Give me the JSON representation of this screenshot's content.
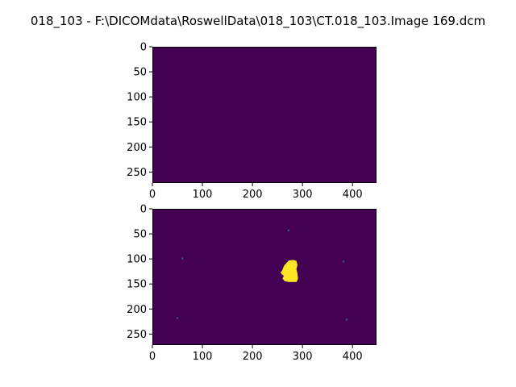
{
  "figure": {
    "title": "018_103 - F:\\DICOMdata\\RoswellData\\018_103\\CT.018_103.Image 169.dcm"
  },
  "colors": {
    "background": "#440154",
    "mask": "#fde725",
    "speck": "#21918c",
    "axis": "#000000"
  },
  "chart_data": [
    {
      "type": "heatmap",
      "colormap": "viridis",
      "image_extent": {
        "x": [
          0,
          448
        ],
        "y": [
          0,
          272
        ]
      },
      "xlim": [
        0,
        448
      ],
      "ylim": [
        272,
        0
      ],
      "xticks": [
        0,
        100,
        200,
        300,
        400
      ],
      "yticks": [
        0,
        50,
        100,
        150,
        200,
        250
      ],
      "values_description": "all zero",
      "regions": []
    },
    {
      "type": "heatmap",
      "colormap": "viridis",
      "image_extent": {
        "x": [
          0,
          448
        ],
        "y": [
          0,
          272
        ]
      },
      "xlim": [
        0,
        448
      ],
      "ylim": [
        272,
        0
      ],
      "xticks": [
        0,
        100,
        200,
        300,
        400
      ],
      "yticks": [
        0,
        50,
        100,
        150,
        200,
        250
      ],
      "blob": {
        "value": 1,
        "polygon": [
          [
            259,
            124
          ],
          [
            263,
            114
          ],
          [
            268,
            108
          ],
          [
            273,
            103
          ],
          [
            282,
            102
          ],
          [
            288,
            104
          ],
          [
            290,
            112
          ],
          [
            288,
            120
          ],
          [
            290,
            130
          ],
          [
            291,
            140
          ],
          [
            288,
            146
          ],
          [
            280,
            146
          ],
          [
            272,
            146
          ],
          [
            264,
            144
          ],
          [
            260,
            139
          ],
          [
            263,
            134
          ],
          [
            259,
            131
          ],
          [
            256,
            127
          ]
        ]
      },
      "specks": [
        {
          "x": 272,
          "y": 43,
          "value": 0.5
        },
        {
          "x": 60,
          "y": 99,
          "value": 0.5
        },
        {
          "x": 382,
          "y": 105,
          "value": 0.5
        },
        {
          "x": 50,
          "y": 218,
          "value": 0.5
        },
        {
          "x": 388,
          "y": 221,
          "value": 0.5
        }
      ]
    }
  ]
}
